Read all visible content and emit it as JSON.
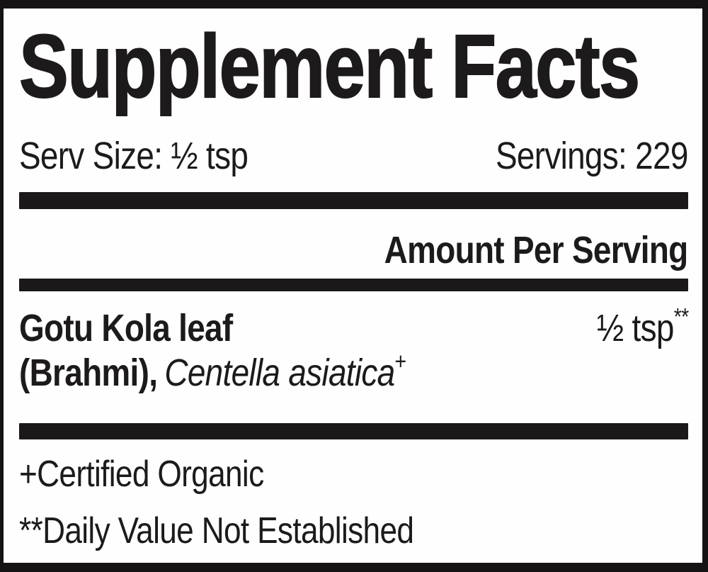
{
  "label": {
    "title": "Supplement Facts",
    "serving_info": {
      "serv_size": "Serv Size: ½ tsp",
      "servings": "Servings: 229"
    },
    "column_header": "Amount Per Serving",
    "ingredient_row": {
      "name": "Gotu Kola leaf",
      "name_line2_bold": "(Brahmi),",
      "name_line2_italic": "Centella asiatica",
      "name_line2_sup": "+",
      "amount": "½ tsp",
      "amount_sup": "**"
    },
    "footnotes": {
      "certified_organic": "+Certified Organic",
      "daily_value": "**Daily Value Not Established"
    },
    "colors": {
      "ink": "#1d1a1b",
      "bar": "#1b1819",
      "border": "#161314",
      "background": "#fefefe"
    }
  }
}
